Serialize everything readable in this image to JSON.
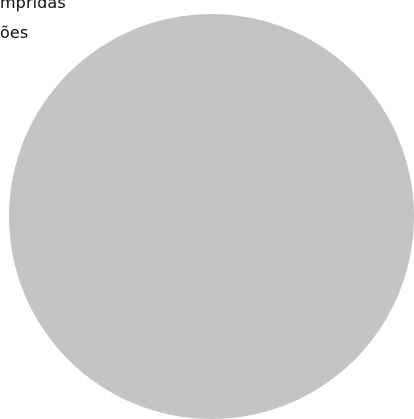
{
  "text": {
    "line1": "mpridas",
    "line2": "ões"
  },
  "colors": {
    "background": "#ffffff",
    "circle": "#c4c4c4",
    "text": "#111111"
  }
}
